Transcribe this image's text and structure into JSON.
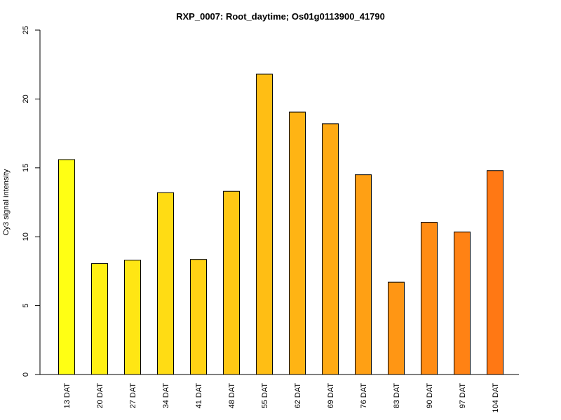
{
  "chart_data": {
    "type": "bar",
    "title": "RXP_0007: Root_daytime; Os01g0113900_41790",
    "xlabel": "",
    "ylabel": "Cy3 signal intensity",
    "ylim": [
      0,
      25
    ],
    "yticks": [
      0,
      5,
      10,
      15,
      20,
      25
    ],
    "categories": [
      "13 DAT",
      "20 DAT",
      "27 DAT",
      "34 DAT",
      "41 DAT",
      "48 DAT",
      "55 DAT",
      "62 DAT",
      "69 DAT",
      "76 DAT",
      "83 DAT",
      "90 DAT",
      "97 DAT",
      "104 DAT"
    ],
    "values": [
      15.6,
      8.05,
      8.3,
      13.2,
      8.35,
      13.3,
      21.8,
      19.05,
      18.2,
      14.5,
      6.7,
      11.05,
      10.35,
      14.8
    ],
    "colors": [
      "#ffff14",
      "#fff014",
      "#ffe614",
      "#ffdc14",
      "#ffd214",
      "#ffc814",
      "#ffbe14",
      "#ffb414",
      "#ffaa14",
      "#ffa014",
      "#ff9614",
      "#ff8c14",
      "#ff8214",
      "#ff7814"
    ],
    "grid": false,
    "legend": "none"
  }
}
